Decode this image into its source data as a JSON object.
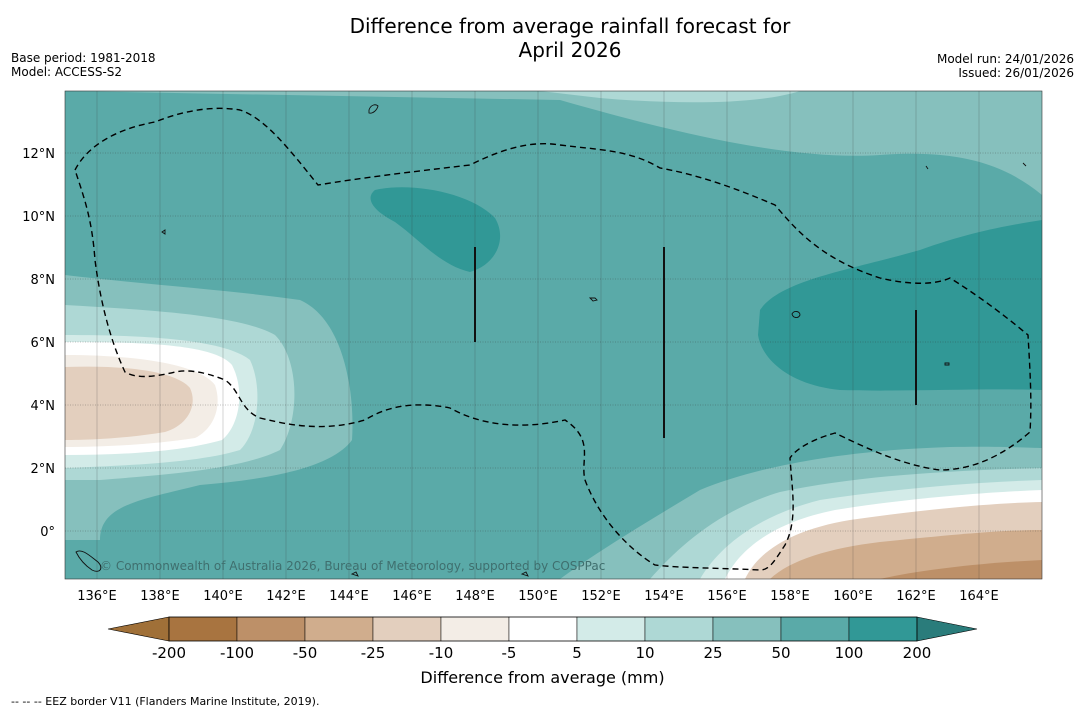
{
  "title_line1": "Difference from average rainfall forecast for",
  "title_line2": "April 2026",
  "base_period": "Base period: 1981-2018",
  "model": "Model: ACCESS-S2",
  "model_run": "Model run: 24/01/2026",
  "issued": "Issued: 26/01/2026",
  "credit": "© Commonwealth of Australia 2026, Bureau of Meteorology, supported by COSPPac",
  "footer_note": "-- -- -- EEZ border V11 (Flanders Marine Institute, 2019).",
  "colorbar": {
    "title": "Difference from average (mm)",
    "ticks": [
      "-200",
      "-100",
      "-50",
      "-25",
      "-10",
      "-5",
      "5",
      "10",
      "25",
      "50",
      "100",
      "200"
    ],
    "colors": [
      "#a87440",
      "#bd9068",
      "#d0ad8d",
      "#e3cfbe",
      "#f3ede6",
      "#ffffff",
      "#d3ebe8",
      "#aed8d5",
      "#86c0bd",
      "#5aaaa8",
      "#319896",
      "#2a7c7b"
    ]
  },
  "map": {
    "lat_labels": [
      "12°N",
      "10°N",
      "8°N",
      "6°N",
      "4°N",
      "2°N",
      "0°"
    ],
    "lon_labels": [
      "136°E",
      "138°E",
      "140°E",
      "142°E",
      "144°E",
      "146°E",
      "148°E",
      "150°E",
      "152°E",
      "154°E",
      "156°E",
      "158°E",
      "160°E",
      "162°E",
      "164°E"
    ]
  }
}
